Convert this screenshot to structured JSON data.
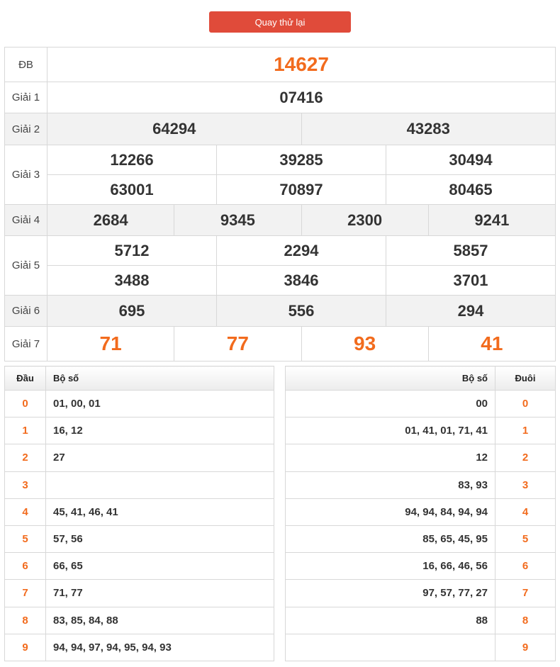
{
  "retry_button": "Quay thử lại",
  "prizes": {
    "db": {
      "label": "ĐB",
      "numbers": [
        "14627"
      ]
    },
    "g1": {
      "label": "Giải 1",
      "numbers": [
        "07416"
      ]
    },
    "g2": {
      "label": "Giải 2",
      "numbers": [
        "64294",
        "43283"
      ]
    },
    "g3": {
      "label": "Giải 3",
      "numbers": [
        "12266",
        "39285",
        "30494",
        "63001",
        "70897",
        "80465"
      ]
    },
    "g4": {
      "label": "Giải 4",
      "numbers": [
        "2684",
        "9345",
        "2300",
        "9241"
      ]
    },
    "g5": {
      "label": "Giải 5",
      "numbers": [
        "5712",
        "2294",
        "5857",
        "3488",
        "3846",
        "3701"
      ]
    },
    "g6": {
      "label": "Giải 6",
      "numbers": [
        "695",
        "556",
        "294"
      ]
    },
    "g7": {
      "label": "Giải 7",
      "numbers": [
        "71",
        "77",
        "93",
        "41"
      ]
    }
  },
  "head_stats": {
    "header_digit": "Đầu",
    "header_numbers": "Bộ số",
    "rows": [
      {
        "digit": "0",
        "numbers": "01, 00, 01"
      },
      {
        "digit": "1",
        "numbers": "16, 12"
      },
      {
        "digit": "2",
        "numbers": "27"
      },
      {
        "digit": "3",
        "numbers": ""
      },
      {
        "digit": "4",
        "numbers": "45, 41, 46, 41"
      },
      {
        "digit": "5",
        "numbers": "57, 56"
      },
      {
        "digit": "6",
        "numbers": "66, 65"
      },
      {
        "digit": "7",
        "numbers": "71, 77"
      },
      {
        "digit": "8",
        "numbers": "83, 85, 84, 88"
      },
      {
        "digit": "9",
        "numbers": "94, 94, 97, 94, 95, 94, 93"
      }
    ]
  },
  "tail_stats": {
    "header_numbers": "Bộ số",
    "header_digit": "Đuôi",
    "rows": [
      {
        "digit": "0",
        "numbers": "00"
      },
      {
        "digit": "1",
        "numbers": "01, 41, 01, 71, 41"
      },
      {
        "digit": "2",
        "numbers": "12"
      },
      {
        "digit": "3",
        "numbers": "83, 93"
      },
      {
        "digit": "4",
        "numbers": "94, 94, 84, 94, 94"
      },
      {
        "digit": "5",
        "numbers": "85, 65, 45, 95"
      },
      {
        "digit": "6",
        "numbers": "16, 66, 46, 56"
      },
      {
        "digit": "7",
        "numbers": "97, 57, 77, 27"
      },
      {
        "digit": "8",
        "numbers": "88"
      },
      {
        "digit": "9",
        "numbers": ""
      }
    ]
  },
  "colors": {
    "accent": "#f26b1d",
    "button": "#e04b3a",
    "row_alt": "#f2f2f2",
    "border": "#d8d8d8"
  }
}
